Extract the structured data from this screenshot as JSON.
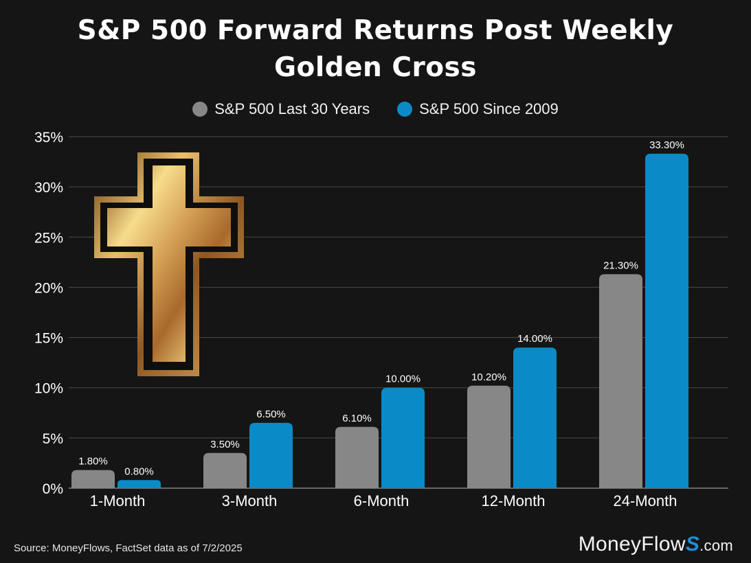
{
  "title_line1": "S&P 500 Forward Returns Post Weekly",
  "title_line2": "Golden Cross",
  "source": "Source: MoneyFlows, FactSet data as of 7/2/2025",
  "brand": {
    "name": "MoneyFlow",
    "mark": "S",
    "suffix": ".com"
  },
  "colors": {
    "series1": "#878787",
    "series2": "#0a8bc7",
    "background": "#151515",
    "grid": "#4a4a4a"
  },
  "icon": "golden-cross-icon",
  "chart_data": {
    "type": "bar",
    "title": "S&P 500 Forward Returns Post Weekly Golden Cross",
    "categories": [
      "1-Month",
      "3-Month",
      "6-Month",
      "12-Month",
      "24-Month"
    ],
    "series": [
      {
        "name": "S&P 500 Last 30 Years",
        "values": [
          1.8,
          3.5,
          6.1,
          10.2,
          21.3
        ],
        "labels": [
          "1.80%",
          "3.50%",
          "6.10%",
          "10.20%",
          "21.30%"
        ]
      },
      {
        "name": "S&P 500 Since 2009",
        "values": [
          0.8,
          6.5,
          10.0,
          14.0,
          33.3
        ],
        "labels": [
          "0.80%",
          "6.50%",
          "10.00%",
          "14.00%",
          "33.30%"
        ]
      }
    ],
    "ylim": [
      0,
      35
    ],
    "yticks": [
      0,
      5,
      10,
      15,
      20,
      25,
      30,
      35
    ],
    "ytick_labels": [
      "0%",
      "5%",
      "10%",
      "15%",
      "20%",
      "25%",
      "30%",
      "35%"
    ],
    "xlabel": "",
    "ylabel": "",
    "grid": true,
    "legend": "top-center"
  }
}
